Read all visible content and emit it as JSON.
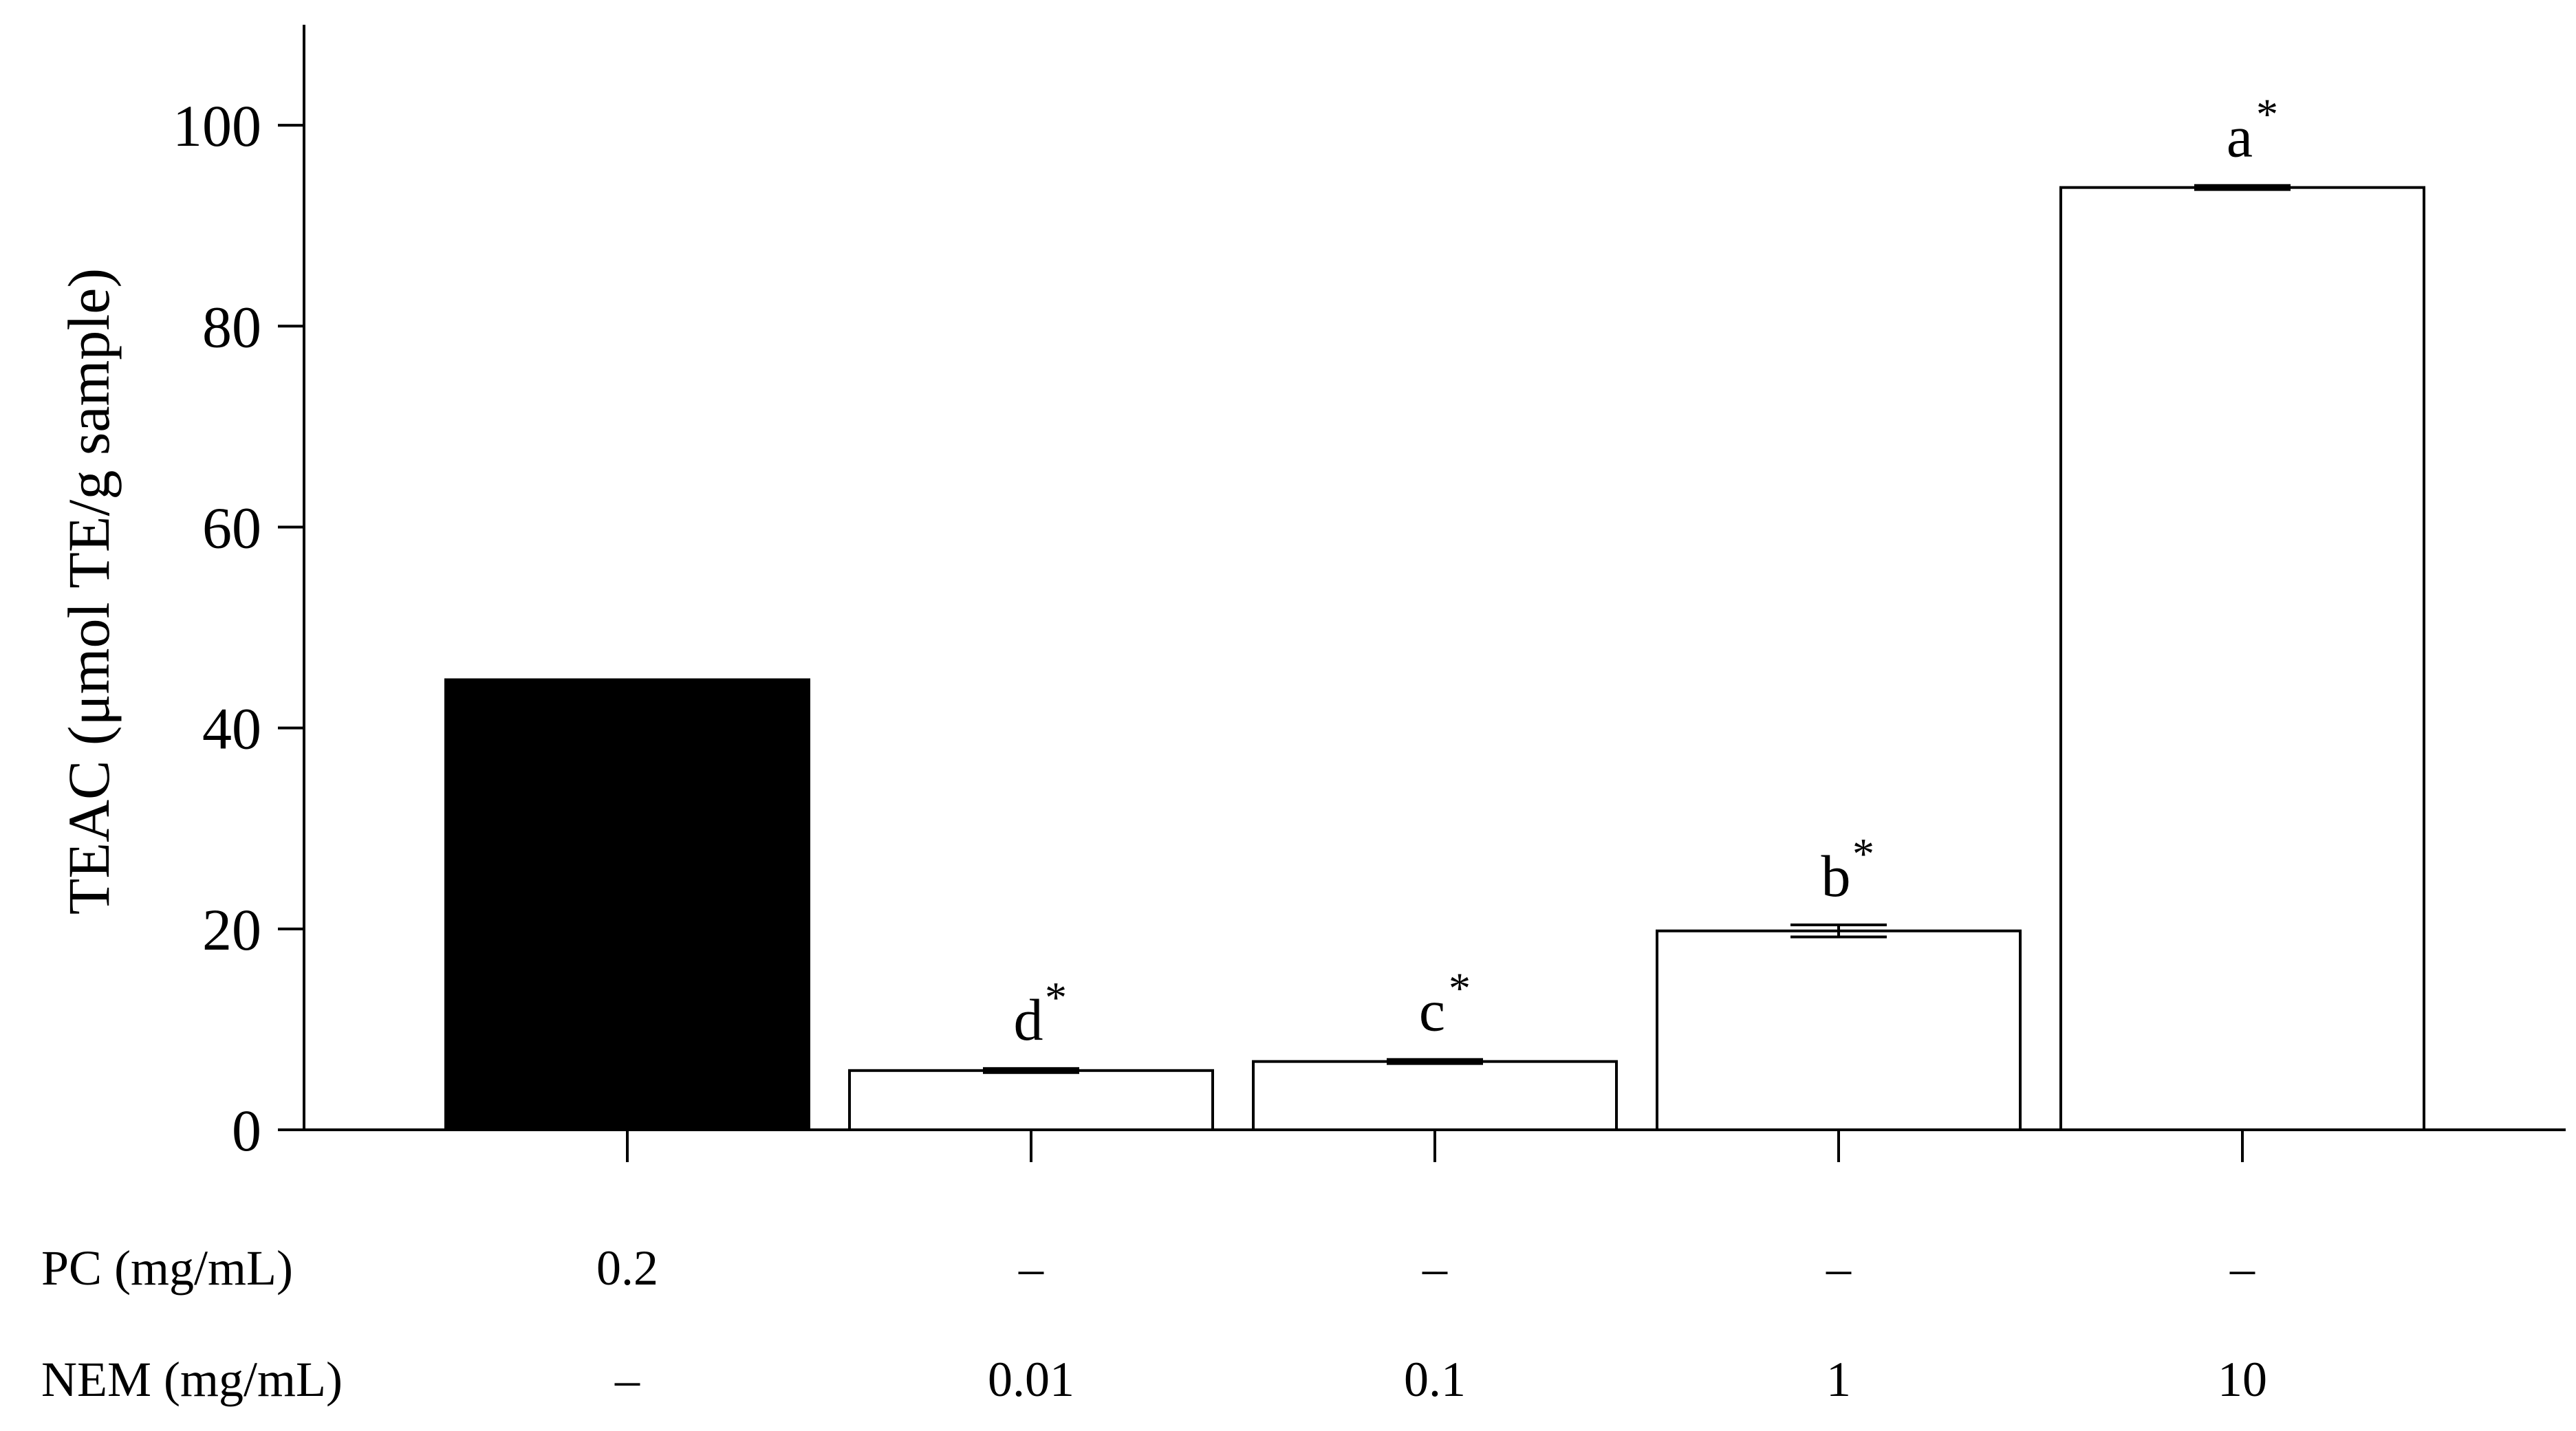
{
  "chart_data": {
    "type": "bar",
    "title": "",
    "ylabel": "TEAC (μmol TE/g sample)",
    "xlabel": "",
    "ylim": [
      0,
      110
    ],
    "yticks": [
      0,
      20,
      40,
      60,
      80,
      100
    ],
    "grid": false,
    "legend": "none",
    "categories": [
      "PC 0.2",
      "NEM 0.01",
      "NEM 0.1",
      "NEM 1",
      "NEM 10"
    ],
    "values": [
      44.8,
      5.9,
      6.8,
      19.8,
      93.8
    ],
    "errors": [
      0,
      0.2,
      0.2,
      0.6,
      0.2
    ],
    "bar_labels": [
      "",
      "d",
      "c",
      "b",
      "a"
    ],
    "bar_label_marks": [
      "",
      "*",
      "*",
      "*",
      "*"
    ],
    "bar_fills": [
      "#000000",
      "#ffffff",
      "#ffffff",
      "#ffffff",
      "#ffffff"
    ],
    "table_rows": [
      {
        "label": "PC (mg/mL)",
        "cells": [
          "0.2",
          "–",
          "–",
          "–",
          "–"
        ]
      },
      {
        "label": "NEM (mg/mL)",
        "cells": [
          "–",
          "0.01",
          "0.1",
          "1",
          "10"
        ]
      }
    ],
    "colors": {
      "axis": "#000000",
      "bar_stroke": "#000000",
      "background": "#ffffff"
    }
  }
}
